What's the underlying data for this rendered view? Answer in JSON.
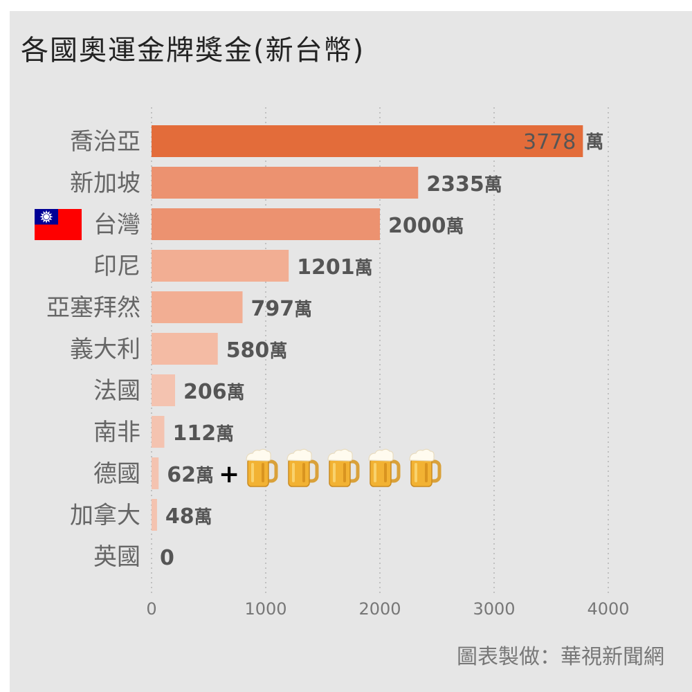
{
  "page": {
    "title": "各國奧運金牌獎金(新台幣)",
    "credit": "圖表製做：華視新聞網"
  },
  "chart_data": {
    "type": "bar",
    "orientation": "horizontal",
    "title": "各國奧運金牌獎金(新台幣)",
    "categories": [
      "喬治亞",
      "新加坡",
      "台灣",
      "印尼",
      "亞塞拜然",
      "義大利",
      "法國",
      "南非",
      "德國",
      "加拿大",
      "英國"
    ],
    "values": [
      3778,
      2335,
      2000,
      1201,
      797,
      580,
      206,
      112,
      62,
      48,
      0
    ],
    "value_labels": [
      "3778",
      "2335",
      "2000",
      "1201",
      "797",
      "580",
      "206",
      "112",
      "62",
      "48",
      "0"
    ],
    "unit": "萬",
    "unit_shown": [
      true,
      true,
      true,
      true,
      true,
      true,
      true,
      true,
      true,
      true,
      false
    ],
    "xlim": [
      0,
      4000
    ],
    "xticks": [
      0,
      1000,
      2000,
      3000,
      4000
    ],
    "grid": "vertical dotted",
    "bar_colors": [
      "#e36c3a",
      "#ec9270",
      "#ec9270",
      "#f2ae93",
      "#f2ae93",
      "#f4bba4",
      "#f4c3b0",
      "#f4c3b0",
      "#f4c3b0",
      "#f4c3b0",
      "#f4c3b0"
    ],
    "annotations": [
      {
        "category": "台灣",
        "icon": "taiwan-flag-icon"
      },
      {
        "category": "德國",
        "text": "+",
        "icon": "beer-mug-icon",
        "count": 5
      }
    ]
  }
}
